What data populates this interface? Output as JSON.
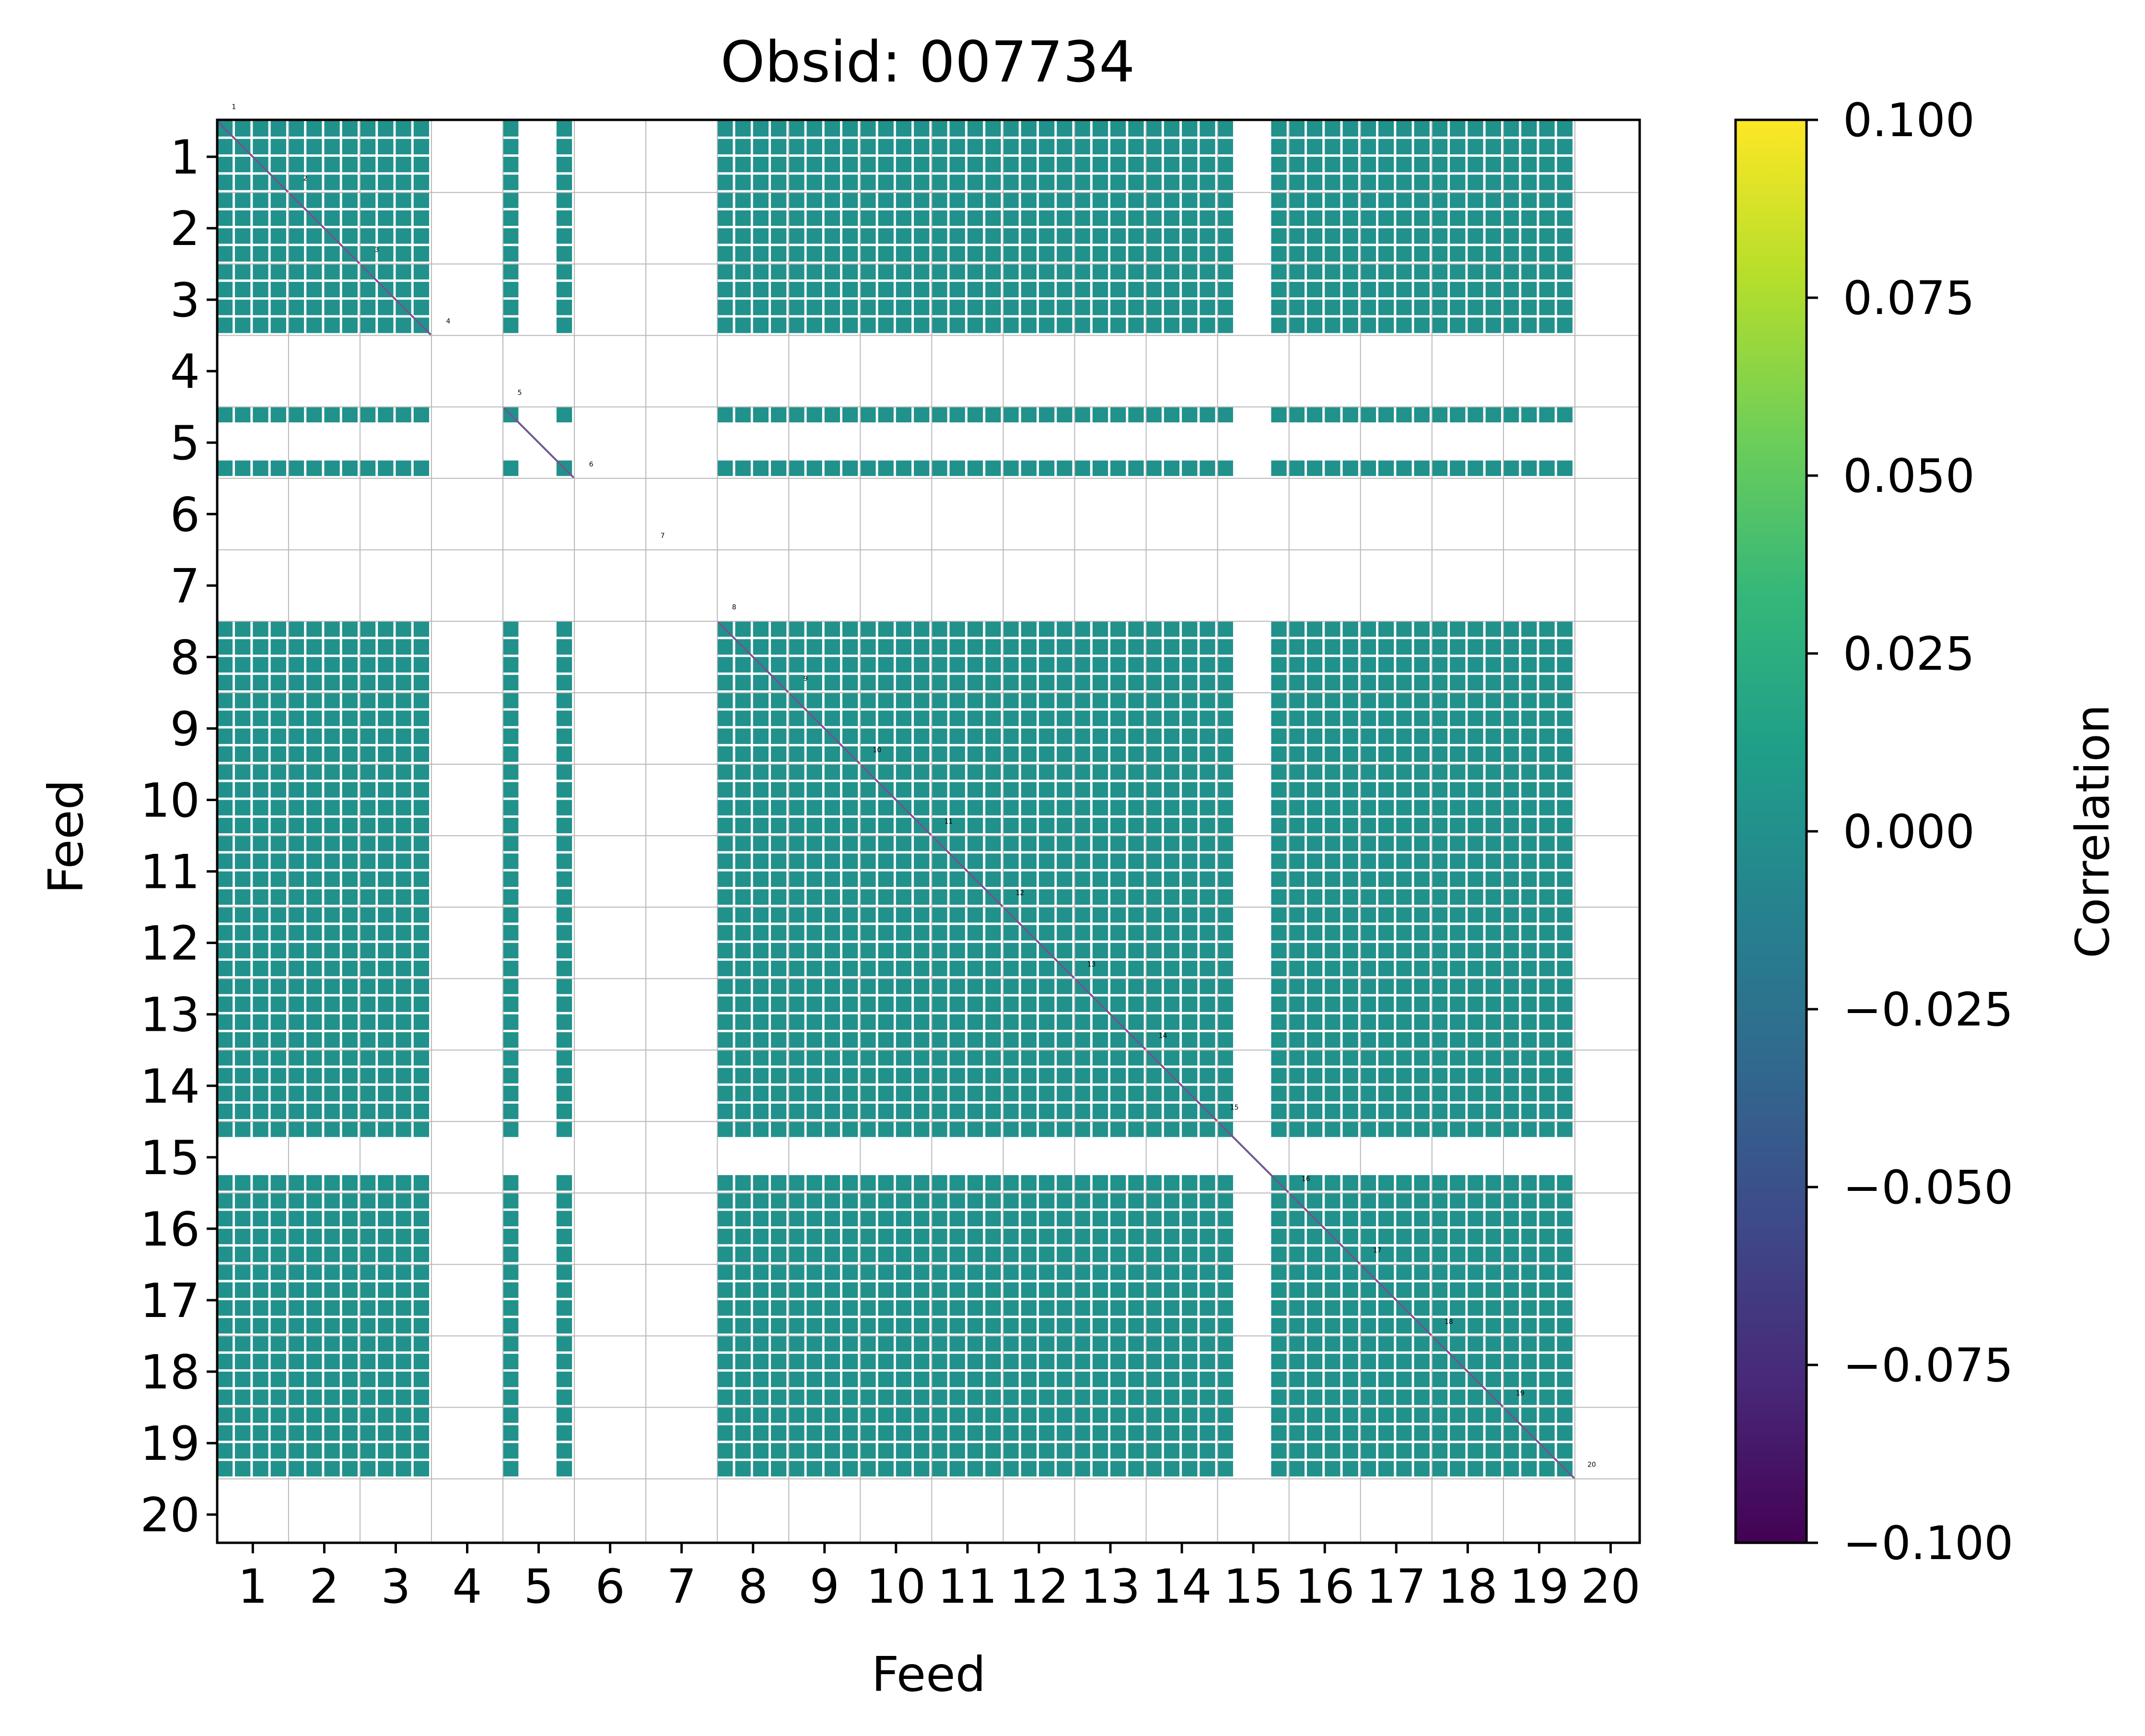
{
  "chart_data": {
    "type": "heatmap",
    "title": "Obsid: 007734",
    "xlabel": "Feed",
    "ylabel": "Feed",
    "feeds": [
      "1",
      "2",
      "3",
      "4",
      "5",
      "6",
      "7",
      "8",
      "9",
      "10",
      "11",
      "12",
      "13",
      "14",
      "15",
      "16",
      "17",
      "18",
      "19",
      "20"
    ],
    "feed_labels": [
      "1",
      "2",
      "3",
      "4",
      "5",
      "6",
      "7",
      "8",
      "9",
      "10",
      "11",
      "12",
      "13",
      "14",
      "15",
      "16",
      "17",
      "18",
      "19",
      "20"
    ],
    "sub_blocks_per_feed": 4,
    "inactive_feeds": [
      "4",
      "6",
      "7",
      "20"
    ],
    "partial_feeds": [
      "5",
      "15"
    ],
    "cell_value_typical": 0.0,
    "diagonal_value": -0.04,
    "colorbar": {
      "label": "Correlation",
      "colormap": "viridis",
      "range": [
        -0.1,
        0.1
      ],
      "tick_labels": [
        "0.100",
        "0.075",
        "0.050",
        "0.025",
        "0.000",
        "−0.025",
        "−0.050",
        "−0.075",
        "−0.100"
      ],
      "colors": [
        "#440154",
        "#482878",
        "#3e4989",
        "#31688e",
        "#26828e",
        "#1f9e89",
        "#35b779",
        "#6ece58",
        "#b5de2b",
        "#fde725"
      ]
    },
    "colors": {
      "cell": "#21918c",
      "diagonal": "#6b5a8c",
      "grid": "#b8b8b8",
      "frame": "#000000"
    }
  }
}
